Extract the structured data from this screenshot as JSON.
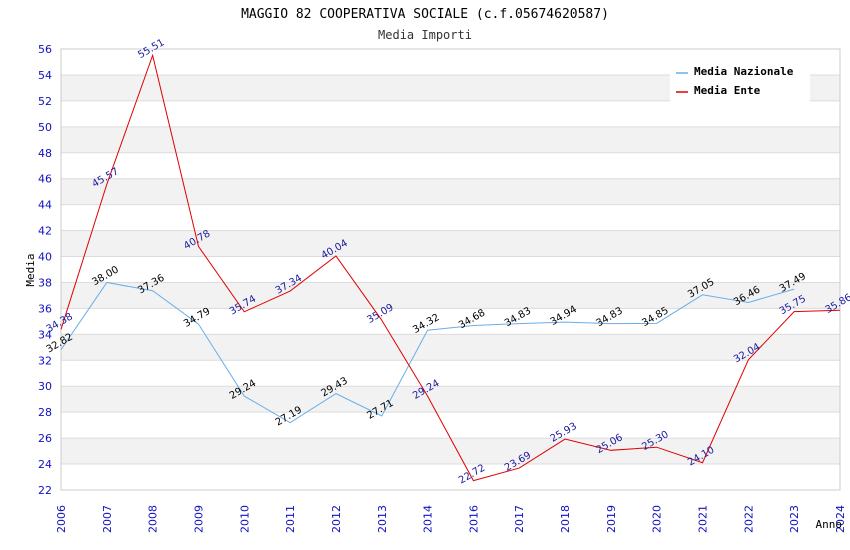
{
  "chart_data": {
    "type": "line",
    "title": "MAGGIO 82 COOPERATIVA SOCIALE (c.f.05674620587)",
    "subtitle": "Media Importi",
    "xlabel": "Anno",
    "ylabel": "Media",
    "ylim": [
      22,
      56
    ],
    "yticks": [
      22,
      24,
      26,
      28,
      30,
      32,
      34,
      36,
      38,
      40,
      42,
      44,
      46,
      48,
      50,
      52,
      54,
      56
    ],
    "categories": [
      "2006",
      "2007",
      "2008",
      "2009",
      "2010",
      "2011",
      "2012",
      "2013",
      "2014",
      "2016",
      "2017",
      "2018",
      "2019",
      "2020",
      "2021",
      "2022",
      "2023",
      "2024"
    ],
    "grid": true,
    "legend_position": "top-right",
    "series": [
      {
        "name": "Media Nazionale",
        "color": "#6aaee8",
        "values": [
          32.82,
          38.0,
          37.36,
          34.79,
          29.24,
          27.19,
          29.43,
          27.71,
          34.32,
          34.68,
          34.83,
          34.94,
          34.83,
          34.85,
          37.05,
          36.46,
          37.49,
          null
        ],
        "labels": [
          "32.82",
          "38.00",
          "37.36",
          "34.79",
          "29.24",
          "27.19",
          "29.43",
          "27.71",
          "34.32",
          "34.68",
          "34.83",
          "34.94",
          "34.83",
          "34.85",
          "37.05",
          "36.46",
          "37.49",
          null
        ]
      },
      {
        "name": "Media Ente",
        "color": "#e00000",
        "values": [
          34.38,
          45.57,
          55.51,
          40.78,
          35.74,
          37.34,
          40.04,
          35.09,
          29.24,
          22.72,
          23.69,
          25.93,
          25.06,
          25.3,
          24.1,
          32.04,
          35.75,
          35.86
        ],
        "labels": [
          "34.38",
          "45.57",
          "55.51",
          "40.78",
          "35.74",
          "37.34",
          "40.04",
          "35.09",
          "29.24",
          "22.72",
          "23.69",
          "25.93",
          "25.06",
          "25.30",
          "24.10",
          "32.04",
          "35.75",
          "35.86"
        ]
      }
    ]
  }
}
